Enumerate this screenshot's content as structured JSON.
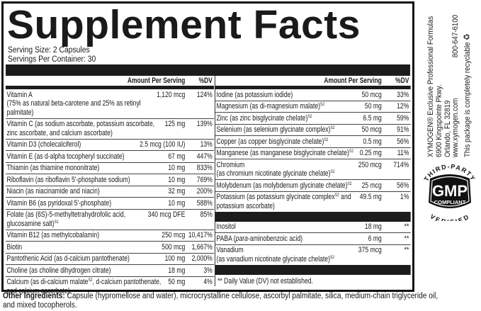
{
  "title": "Supplement Facts",
  "serving_size": "Serving Size: 2 Capsules",
  "servings_per_container": "Servings Per Container: 30",
  "header": {
    "amount": "Amount Per Serving",
    "dv": "%DV"
  },
  "left": {
    "rows": [
      {
        "name": "Vitamin A",
        "sub": "(75% as natural beta-carotene and 25% as retinyl palmitate)",
        "amount": "1,120 mcg",
        "dv": "124%"
      },
      {
        "name": "Vitamin C (as sodium ascorbate, potassium ascorbate, zinc ascorbate, and calcium ascorbate)",
        "amount": "125 mg",
        "dv": "139%"
      },
      {
        "name": "Vitamin D3 (cholecalciferol)",
        "amount": "2.5 mcg (100 IU)",
        "dv": "13%"
      },
      {
        "name": "Vitamin E (as d-alpha tocopheryl succinate)",
        "amount": "67 mg",
        "dv": "447%"
      },
      {
        "name": "Thiamin (as thiamine mononitrate)",
        "amount": "10 mg",
        "dv": "833%"
      },
      {
        "name": "Riboflavin (as riboflavin 5'-phosphate sodium)",
        "amount": "10 mg",
        "dv": "769%"
      },
      {
        "name": "Niacin (as niacinamide and niacin)",
        "amount": "32 mg",
        "dv": "200%"
      },
      {
        "name": "Vitamin B6 (as pyridoxal 5'-phosphate)",
        "amount": "10 mg",
        "dv": "588%"
      },
      {
        "name": "Folate (as (6S)-5-methyltetrahydrofolic acid, glucosamine salt)",
        "sup": "S1",
        "amount": "340 mcg DFE",
        "dv": "85%"
      },
      {
        "name": "Vitamin B12 (as methylcobalamin)",
        "amount": "250 mcg",
        "dv": "10,417%"
      },
      {
        "name": "Biotin",
        "amount": "500 mcg",
        "dv": "1,667%"
      },
      {
        "name": "Pantothenic Acid (as d-calcium pantothenate)",
        "amount": "100 mg",
        "dv": "2,000%"
      },
      {
        "name": "Choline (as choline dihydrogen citrate)",
        "amount": "18 mg",
        "dv": "3%"
      },
      {
        "name": "Calcium (as di-calcium malate",
        "sup": "S2",
        "after": ", d-calcium pantothenate, and calcium ascorbate)",
        "amount": "50 mg",
        "dv": "4%"
      }
    ]
  },
  "right": {
    "rows": [
      {
        "name": "Iodine (as potassium iodide)",
        "amount": "50 mcg",
        "dv": "33%"
      },
      {
        "name": "Magnesium (as di-magnesium malate)",
        "sup": "S2",
        "amount": "50 mg",
        "dv": "12%"
      },
      {
        "name": "Zinc (as zinc bisglycinate chelate)",
        "sup": "S2",
        "amount": "6.5 mg",
        "dv": "59%"
      },
      {
        "name": "Selenium (as selenium glycinate complex)",
        "sup": "S2",
        "amount": "50 mcg",
        "dv": "91%"
      },
      {
        "name": "Copper (as copper bisglycinate chelate)",
        "sup": "S2",
        "amount": "0.5 mg",
        "dv": "56%"
      },
      {
        "name": "Manganese (as manganese bisglycinate chelate)",
        "sup": "S2",
        "amount": "0.25 mg",
        "dv": "11%"
      },
      {
        "name": "Chromium",
        "sub": "(as chromium nicotinate glycinate chelate)",
        "sub_sup": "S2",
        "amount": "250 mcg",
        "dv": "714%"
      },
      {
        "name": "Molybdenum (as molybdenum glycinate chelate)",
        "sup": "S2",
        "amount": "25 mcg",
        "dv": "56%"
      },
      {
        "name": "Potassium (as potassium glycinate complex",
        "sup": "S2",
        "after": " and potassium ascorbate)",
        "amount": "49.5 mg",
        "dv": "1%"
      }
    ],
    "rows2": [
      {
        "name": "Inositol",
        "amount": "18 mg",
        "dv": "**"
      },
      {
        "name": "PABA (",
        "italic": "para",
        "after": "-aminobenzoic acid)",
        "amount": "6 mg",
        "dv": "**"
      },
      {
        "name": "Vanadium",
        "sub": "(as vanadium nicotinate glycinate chelate)",
        "sub_sup": "S2",
        "amount": "375 mcg",
        "dv": "**"
      }
    ],
    "footnote": "** Daily Value (DV) not established."
  },
  "other_ingredients": {
    "label": "Other Ingredients:",
    "text": " Capsule (hypromellose and water), microcrystalline cellulose, ascorbyl palmitate, silica, medium-chain triglyceride oil, and mixed tocopherols."
  },
  "company": {
    "line1": "XYMOGEN® Exclusive Professional Formulas",
    "line2": "6900 Kingspointe Pkwy.",
    "line3": "Orlando, FL 32819",
    "website": "www.xymogen.com",
    "phone": "800-647-6100",
    "recyclable": "This package is completely recyclable"
  },
  "badge": {
    "top": "THIRD-PARTY",
    "main": "GMP",
    "sub": "COMPLIANT",
    "bottom": "VERIFIED"
  }
}
